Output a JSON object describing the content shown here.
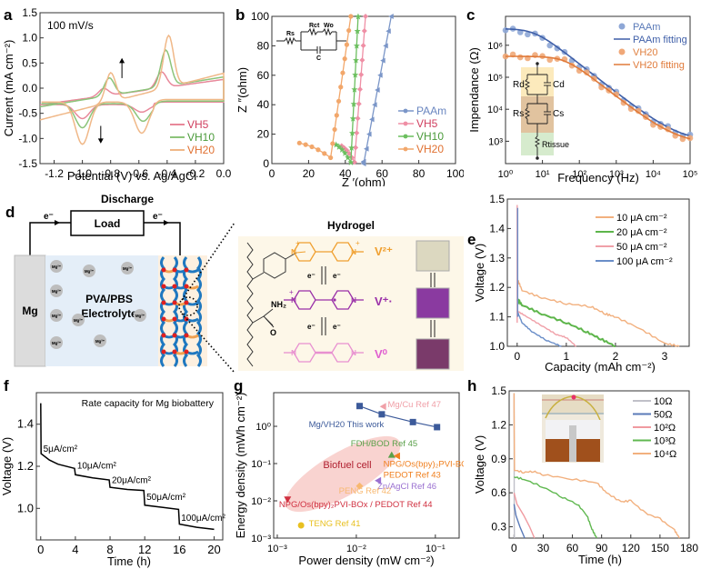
{
  "figure": {
    "panel_labels": [
      "a",
      "b",
      "c",
      "d",
      "e",
      "f",
      "g",
      "h"
    ]
  },
  "chart_data": [
    {
      "id": "a",
      "type": "line",
      "annotation": "100 mV/s",
      "xlabel": "Potential (V) vs. Ag/AgCl",
      "ylabel": "Current (mA cm⁻²)",
      "xlim": [
        -1.3,
        0.0
      ],
      "ylim": [
        -1.5,
        1.5
      ],
      "xticks": [
        "-1.2",
        "-1.0",
        "-0.8",
        "-0.6",
        "-0.4",
        "-0.2",
        "0.0"
      ],
      "xtick_values": [
        -1.2,
        -1.0,
        -0.8,
        -0.6,
        -0.4,
        -0.2,
        0.0
      ],
      "yticks": [
        "-1.5",
        "-1.0",
        "-0.5",
        "0.0",
        "0.5",
        "1.0",
        "1.5"
      ],
      "ytick_values": [
        -1.5,
        -1.0,
        -0.5,
        0.0,
        0.5,
        1.0,
        1.5
      ],
      "legend": "bottom-right",
      "series": [
        {
          "name": "VH5",
          "color": "#e8889a",
          "anodic_peaks": [
            [
              -0.85,
              0.2
            ],
            [
              -0.44,
              0.37
            ]
          ],
          "cathodic_peaks": [
            [
              -1.0,
              -0.58
            ],
            [
              -0.58,
              -0.45
            ]
          ],
          "start": [
            -1.3,
            -0.48
          ],
          "end": [
            0.0,
            0.08
          ]
        },
        {
          "name": "VH10",
          "color": "#8cc47a",
          "anodic_peaks": [
            [
              -0.81,
              0.4
            ],
            [
              -0.41,
              0.77
            ]
          ],
          "cathodic_peaks": [
            [
              -1.0,
              -0.78
            ],
            [
              -0.57,
              -0.65
            ]
          ],
          "start": [
            -1.3,
            -0.52
          ],
          "end": [
            0.0,
            0.14
          ]
        },
        {
          "name": "VH20",
          "color": "#f0b888",
          "anodic_peaks": [
            [
              -0.8,
              0.63
            ],
            [
              -0.39,
              1.08
            ]
          ],
          "cathodic_peaks": [
            [
              -1.0,
              -1.14
            ],
            [
              -0.58,
              -0.92
            ]
          ],
          "start": [
            -1.3,
            -0.78
          ],
          "end": [
            0.0,
            0.25
          ]
        }
      ],
      "arrows": [
        {
          "x": -0.72,
          "direction": "up"
        },
        {
          "x": -0.87,
          "direction": "down"
        }
      ]
    },
    {
      "id": "b",
      "type": "scatter",
      "xlabel": "Z ′(ohm)",
      "ylabel": "Z ″(ohm)",
      "xlim": [
        0,
        100
      ],
      "ylim": [
        0,
        100
      ],
      "xticks": [
        "0",
        "20",
        "40",
        "60",
        "80",
        "100"
      ],
      "xtick_values": [
        0,
        20,
        40,
        60,
        80,
        100
      ],
      "yticks": [
        "0",
        "20",
        "40",
        "60",
        "80",
        "100"
      ],
      "ytick_values": [
        0,
        20,
        40,
        60,
        80,
        100
      ],
      "legend": "bottom-right",
      "inset_circuit": {
        "labels": [
          "Rs",
          "Rct",
          "Wo",
          "C"
        ]
      },
      "series": [
        {
          "name": "PAAm",
          "color": "#7b96c8",
          "marker": "triangle-left",
          "arc_start": [
            50,
            0
          ],
          "arc_end": [
            50,
            0
          ],
          "tail_top": [
            65,
            100
          ]
        },
        {
          "name": "VH5",
          "color": "#ef8fa5",
          "marker": "diamond",
          "arc_start": [
            38,
            12
          ],
          "arc_end": [
            45,
            1
          ],
          "tail_top": [
            51,
            100
          ]
        },
        {
          "name": "VH10",
          "color": "#6cbf5f",
          "marker": "star",
          "arc_start": [
            35,
            13
          ],
          "arc_end": [
            43,
            1
          ],
          "tail_top": [
            47,
            100
          ]
        },
        {
          "name": "VH20",
          "color": "#f2a76b",
          "marker": "circle",
          "arc_start": [
            15,
            14
          ],
          "arc_end": [
            32,
            4
          ],
          "tail_top": [
            43,
            100
          ]
        }
      ]
    },
    {
      "id": "c",
      "type": "scatter",
      "xlabel": "Frequency (Hz)",
      "ylabel": "Impendance (Ω)",
      "xscale": "log",
      "yscale": "log",
      "xlim": [
        1,
        100000
      ],
      "ylim": [
        200,
        8000000
      ],
      "xticks": [
        "10⁰",
        "10¹",
        "10²",
        "10³",
        "10⁴",
        "10⁵"
      ],
      "xtick_exp": [
        0,
        1,
        2,
        3,
        4,
        5
      ],
      "yticks": [
        "10³",
        "10⁴",
        "10⁵",
        "10⁶"
      ],
      "ytick_exp": [
        3,
        4,
        5,
        6
      ],
      "legend": "top-right",
      "inset_circuit": {
        "labels": [
          "Rd",
          "Cd",
          "Rs",
          "Cs",
          "Rtissue"
        ]
      },
      "series": [
        {
          "name": "PAAm",
          "color": "#8ea7d6",
          "kind": "points",
          "low_f": 3000000,
          "corner_hz": 6,
          "high_f": 950
        },
        {
          "name": "PAAm fitting",
          "color": "#3f5fa8",
          "kind": "line",
          "low_f": 3300000,
          "corner_hz": 6,
          "high_f": 950
        },
        {
          "name": "VH20",
          "color": "#f0a878",
          "kind": "points",
          "low_f": 450000,
          "corner_hz": 40,
          "high_f": 720
        },
        {
          "name": "VH20 fitting",
          "color": "#e07a3a",
          "kind": "line",
          "low_f": 450000,
          "corner_hz": 40,
          "high_f": 800
        }
      ]
    },
    {
      "id": "e",
      "type": "line",
      "xlabel": "Capacity (mAh cm⁻²)",
      "ylabel": "Voltage (V)",
      "xlim": [
        -0.2,
        3.5
      ],
      "ylim": [
        1.0,
        1.5
      ],
      "xticks": [
        "0",
        "1",
        "2",
        "3"
      ],
      "xtick_values": [
        0,
        1,
        2,
        3
      ],
      "yticks": [
        "1.0",
        "1.1",
        "1.2",
        "1.3",
        "1.4",
        "1.5"
      ],
      "ytick_values": [
        1.0,
        1.1,
        1.2,
        1.3,
        1.4,
        1.5
      ],
      "legend": "top-right",
      "series": [
        {
          "name": "10 μA cm⁻²",
          "color": "#f2b07e",
          "points": [
            [
              0,
              1.23
            ],
            [
              0.1,
              1.19
            ],
            [
              0.5,
              1.165
            ],
            [
              1.0,
              1.145
            ],
            [
              1.5,
              1.135
            ],
            [
              1.8,
              1.11
            ],
            [
              2.0,
              1.1
            ],
            [
              2.5,
              1.06
            ],
            [
              3.0,
              1.01
            ],
            [
              3.3,
              1.0
            ]
          ]
        },
        {
          "name": "20 μA cm⁻²",
          "color": "#5db54a",
          "points": [
            [
              0,
              1.16
            ],
            [
              0.1,
              1.14
            ],
            [
              0.5,
              1.11
            ],
            [
              1.0,
              1.08
            ],
            [
              1.4,
              1.05
            ],
            [
              1.7,
              1.025
            ],
            [
              2.0,
              1.0
            ]
          ]
        },
        {
          "name": "50 μA cm⁻²",
          "color": "#f0a0a8",
          "points": [
            [
              0,
              1.12
            ],
            [
              0.2,
              1.1
            ],
            [
              0.5,
              1.07
            ],
            [
              0.8,
              1.04
            ],
            [
              1.0,
              1.03
            ],
            [
              1.2,
              1.0
            ]
          ]
        },
        {
          "name": "100 μA cm⁻²",
          "color": "#6a8ec8",
          "points": [
            [
              0,
              1.12
            ],
            [
              0.1,
              1.08
            ],
            [
              0.3,
              1.05
            ],
            [
              0.6,
              1.02
            ],
            [
              0.9,
              1.0
            ]
          ]
        }
      ]
    },
    {
      "id": "f",
      "type": "line",
      "annotation": "Rate capacity for Mg biobattery",
      "xlabel": "Time (h)",
      "ylabel": "Voltage (V)",
      "xlim": [
        -0.5,
        21
      ],
      "ylim": [
        0.85,
        1.55
      ],
      "xticks": [
        "0",
        "4",
        "8",
        "12",
        "16",
        "20"
      ],
      "xtick_values": [
        0,
        4,
        8,
        12,
        16,
        20
      ],
      "yticks": [
        "1.0",
        "1.2",
        "1.4"
      ],
      "ytick_values": [
        1.0,
        1.2,
        1.4
      ],
      "step_labels": [
        {
          "text": "5μA/cm²",
          "x": 0.3,
          "y": 1.27
        },
        {
          "text": "10μA/cm²",
          "x": 4.2,
          "y": 1.19
        },
        {
          "text": "20μA/cm²",
          "x": 8.2,
          "y": 1.12
        },
        {
          "text": "50μA/cm²",
          "x": 12.2,
          "y": 1.04
        },
        {
          "text": "100μA/cm²",
          "x": 16.2,
          "y": 0.94
        }
      ],
      "series": [
        {
          "name": "Mg biobattery",
          "color": "#000000",
          "points": [
            [
              0,
              1.5
            ],
            [
              0.05,
              1.26
            ],
            [
              1,
              1.23
            ],
            [
              2,
              1.21
            ],
            [
              3.9,
              1.19
            ],
            [
              4,
              1.16
            ],
            [
              6,
              1.145
            ],
            [
              7.9,
              1.135
            ],
            [
              8,
              1.1
            ],
            [
              10,
              1.09
            ],
            [
              11.9,
              1.085
            ],
            [
              12,
              1.015
            ],
            [
              14,
              1.005
            ],
            [
              15.9,
              0.995
            ],
            [
              16,
              0.925
            ],
            [
              18,
              0.91
            ],
            [
              20,
              0.9
            ]
          ]
        }
      ]
    },
    {
      "id": "g",
      "type": "scatter",
      "xlabel": "Power density (mW cm⁻²)",
      "ylabel": "Energy density (mWh cm⁻²)",
      "xscale": "log",
      "yscale": "log",
      "xlim": [
        0.0009,
        0.2
      ],
      "ylim": [
        0.001,
        8
      ],
      "xticks": [
        "10⁻³",
        "10⁻²",
        "10⁻¹"
      ],
      "xtick_exp": [
        -3,
        -2,
        -1
      ],
      "yticks": [
        "10⁻³",
        "10⁻²",
        "10⁻¹",
        "10⁰"
      ],
      "ytick_exp": [
        -3,
        -2,
        -1,
        0
      ],
      "region": {
        "label": "Biofuel cell",
        "color": "#f8c8c4"
      },
      "series": [
        {
          "name": "Mg/VH20 This work",
          "color": "#3c5a9a",
          "marker": "square",
          "points": [
            [
              0.011,
              3.5
            ],
            [
              0.021,
              2.1
            ],
            [
              0.052,
              1.3
            ],
            [
              0.105,
              0.95
            ]
          ],
          "connected": true
        },
        {
          "name": "Mg/Cu Ref 47",
          "color": "#f0a0a8",
          "marker": "triangle-left",
          "points": [
            [
              0.022,
              3.4
            ]
          ]
        },
        {
          "name": "FDH/BOD Ref 45",
          "color": "#5aa04a",
          "marker": "triangle-up",
          "points": [
            [
              0.028,
              0.17
            ]
          ]
        },
        {
          "name": "NPG/Os(bpy)₂PVI-BOx/ PEDOT Ref 43",
          "color": "#f08020",
          "marker": "triangle-left",
          "points": [
            [
              0.033,
              0.16
            ]
          ]
        },
        {
          "name": "Zn/AgCl Ref 46",
          "color": "#9a70d0",
          "marker": "triangle-left",
          "points": [
            [
              0.019,
              0.035
            ]
          ]
        },
        {
          "name": "PENG Ref 42",
          "color": "#f8b870",
          "marker": "diamond",
          "points": [
            [
              0.011,
              0.025
            ]
          ]
        },
        {
          "name": "NPG/Os(bpy)₂PVI-BOx / PEDOT Ref 44",
          "color": "#d03040",
          "marker": "triangle-down",
          "points": [
            [
              0.00135,
              0.011
            ]
          ]
        },
        {
          "name": "TENG Ref 41",
          "color": "#e8c020",
          "marker": "circle",
          "points": [
            [
              0.002,
              0.0022
            ]
          ]
        }
      ]
    },
    {
      "id": "h",
      "type": "line",
      "xlabel": "Time (h)",
      "ylabel": "Voltage (V)",
      "xlim": [
        -5,
        180
      ],
      "ylim": [
        0.2,
        1.5
      ],
      "xticks": [
        "0",
        "30",
        "60",
        "90",
        "120",
        "150",
        "180"
      ],
      "xtick_values": [
        0,
        30,
        60,
        90,
        120,
        150,
        180
      ],
      "yticks": [
        "0.3",
        "0.6",
        "0.9",
        "1.2",
        "1.5"
      ],
      "ytick_values": [
        0.3,
        0.6,
        0.9,
        1.2,
        1.5
      ],
      "legend": "top-right",
      "series": [
        {
          "name": "10Ω",
          "color": "#c0c0c8",
          "points": [
            [
              0,
              1.48
            ],
            [
              0.2,
              0.3
            ],
            [
              0.4,
              0.2
            ]
          ]
        },
        {
          "name": "50Ω",
          "color": "#5a7ab8",
          "points": [
            [
              0,
              0.5
            ],
            [
              2,
              0.4
            ],
            [
              6,
              0.3
            ],
            [
              11,
              0.2
            ]
          ]
        },
        {
          "name": "10²Ω",
          "color": "#f09aa0",
          "points": [
            [
              0,
              0.6
            ],
            [
              3,
              0.5
            ],
            [
              10,
              0.4
            ],
            [
              16,
              0.3
            ],
            [
              21,
              0.2
            ]
          ]
        },
        {
          "name": "10³Ω",
          "color": "#60b850",
          "points": [
            [
              0,
              0.74
            ],
            [
              10,
              0.72
            ],
            [
              30,
              0.65
            ],
            [
              50,
              0.56
            ],
            [
              65,
              0.5
            ],
            [
              75,
              0.4
            ],
            [
              80,
              0.28
            ],
            [
              85,
              0.2
            ]
          ]
        },
        {
          "name": "10⁴Ω",
          "color": "#f2b07e",
          "points": [
            [
              0,
              1.48
            ],
            [
              0.5,
              0.8
            ],
            [
              10,
              0.78
            ],
            [
              20,
              0.79
            ],
            [
              30,
              0.76
            ],
            [
              60,
              0.72
            ],
            [
              85,
              0.69
            ],
            [
              95,
              0.6
            ],
            [
              110,
              0.52
            ],
            [
              120,
              0.53
            ],
            [
              135,
              0.42
            ],
            [
              150,
              0.37
            ],
            [
              165,
              0.27
            ],
            [
              170,
              0.2
            ]
          ]
        }
      ]
    }
  ],
  "diagram_d": {
    "discharge_label": "Discharge",
    "load_label": "Load",
    "electron_left": "e⁻",
    "electron_right": "e⁻",
    "anode_label": "Mg",
    "electrolyte_label_1": "PVA/PBS",
    "electrolyte_label_2": "Electrolyte",
    "ion_label": "Mg²⁺",
    "hydrogel_title": "Hydrogel",
    "species": [
      {
        "label": "V²⁺",
        "color": "#f0a030"
      },
      {
        "label": "V⁺·",
        "color": "#9a30a8"
      },
      {
        "label": "V⁰",
        "color": "#e060d0"
      }
    ],
    "electron_tag": "e⁻",
    "amide_label": "NH₂",
    "oxygen_label": "O",
    "nitrogen_label": "N",
    "plus_label": "+",
    "swatch_colors": [
      "#dcd8c0",
      "#8a3aa0",
      "#7a3a6a"
    ]
  }
}
